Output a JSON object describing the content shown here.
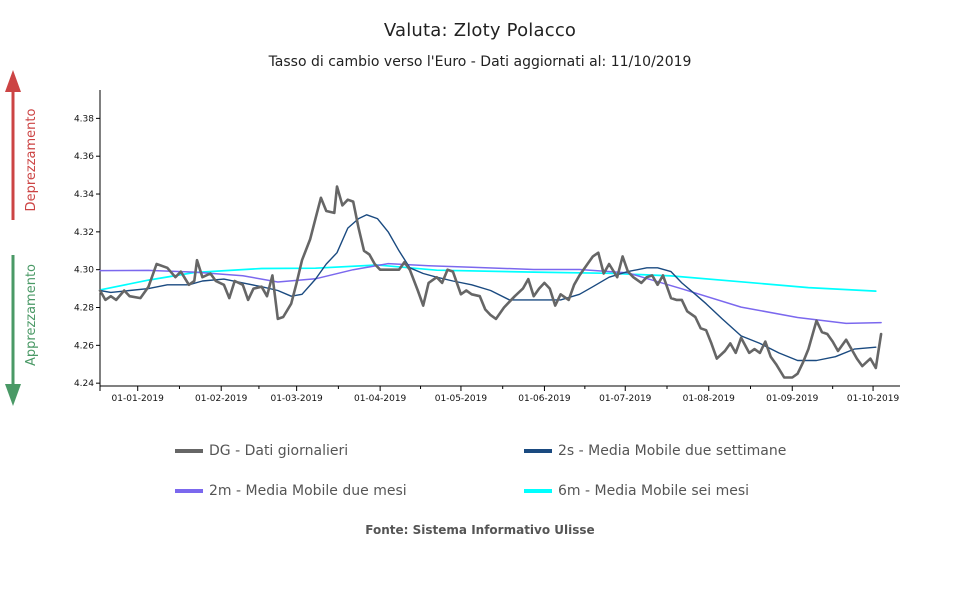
{
  "title": "Valuta: Zloty Polacco",
  "subtitle": "Tasso di cambio verso l'Euro - Dati aggiornati al: 11/10/2019",
  "side_labels": {
    "top": "Deprezzamento",
    "bottom": "Apprezzamento"
  },
  "source": "Fonte: Sistema Informativo Ulisse",
  "colors": {
    "dg": "#666666",
    "ma2s": "#1a4a80",
    "ma2m": "#7b68ee",
    "ma6m": "#00ffff",
    "arrow_up": "#cc4444",
    "arrow_down": "#4a9966"
  },
  "chart_data": {
    "type": "line",
    "title": "Valuta: Zloty Polacco",
    "subtitle": "Tasso di cambio verso l'Euro - Dati aggiornati al: 11/10/2019",
    "xlabel": "",
    "ylabel": "",
    "x_ticks": [
      "01-01-2019",
      "01-02-2019",
      "01-03-2019",
      "01-04-2019",
      "01-05-2019",
      "01-06-2019",
      "01-07-2019",
      "01-08-2019",
      "01-09-2019",
      "01-10-2019"
    ],
    "y_ticks": [
      "4.24",
      "4.26",
      "4.28",
      "4.30",
      "4.32",
      "4.34",
      "4.36",
      "4.38"
    ],
    "ylim": [
      4.2385,
      4.395
    ],
    "xlim": [
      "2018-12-18",
      "2019-10-11"
    ],
    "grid": false,
    "legend_position": "bottom",
    "series": [
      {
        "name": "DG - Dati giornalieri",
        "key": "dg",
        "points": [
          [
            "2018-12-18",
            4.289
          ],
          [
            "2018-12-20",
            4.284
          ],
          [
            "2018-12-22",
            4.286
          ],
          [
            "2018-12-24",
            4.284
          ],
          [
            "2018-12-27",
            4.289
          ],
          [
            "2018-12-29",
            4.286
          ],
          [
            "2019-01-02",
            4.285
          ],
          [
            "2019-01-05",
            4.291
          ],
          [
            "2019-01-08",
            4.303
          ],
          [
            "2019-01-12",
            4.301
          ],
          [
            "2019-01-15",
            4.296
          ],
          [
            "2019-01-17",
            4.299
          ],
          [
            "2019-01-20",
            4.292
          ],
          [
            "2019-01-22",
            4.294
          ],
          [
            "2019-01-23",
            4.305
          ],
          [
            "2019-01-25",
            4.296
          ],
          [
            "2019-01-28",
            4.298
          ],
          [
            "2019-01-30",
            4.294
          ],
          [
            "2019-02-02",
            4.292
          ],
          [
            "2019-02-04",
            4.285
          ],
          [
            "2019-02-06",
            4.294
          ],
          [
            "2019-02-09",
            4.292
          ],
          [
            "2019-02-11",
            4.284
          ],
          [
            "2019-02-13",
            4.29
          ],
          [
            "2019-02-16",
            4.291
          ],
          [
            "2019-02-18",
            4.286
          ],
          [
            "2019-02-20",
            4.297
          ],
          [
            "2019-02-22",
            4.274
          ],
          [
            "2019-02-24",
            4.275
          ],
          [
            "2019-02-27",
            4.282
          ],
          [
            "2019-03-01",
            4.293
          ],
          [
            "2019-03-03",
            4.305
          ],
          [
            "2019-03-06",
            4.316
          ],
          [
            "2019-03-08",
            4.327
          ],
          [
            "2019-03-10",
            4.338
          ],
          [
            "2019-03-12",
            4.331
          ],
          [
            "2019-03-15",
            4.33
          ],
          [
            "2019-03-16",
            4.344
          ],
          [
            "2019-03-18",
            4.334
          ],
          [
            "2019-03-20",
            4.337
          ],
          [
            "2019-03-22",
            4.336
          ],
          [
            "2019-03-24",
            4.322
          ],
          [
            "2019-03-26",
            4.31
          ],
          [
            "2019-03-28",
            4.308
          ],
          [
            "2019-03-30",
            4.303
          ],
          [
            "2019-04-01",
            4.3
          ],
          [
            "2019-04-04",
            4.3
          ],
          [
            "2019-04-06",
            4.3
          ],
          [
            "2019-04-08",
            4.3
          ],
          [
            "2019-04-10",
            4.304
          ],
          [
            "2019-04-12",
            4.3
          ],
          [
            "2019-04-15",
            4.289
          ],
          [
            "2019-04-17",
            4.281
          ],
          [
            "2019-04-19",
            4.293
          ],
          [
            "2019-04-22",
            4.296
          ],
          [
            "2019-04-24",
            4.293
          ],
          [
            "2019-04-26",
            4.3
          ],
          [
            "2019-04-28",
            4.299
          ],
          [
            "2019-05-01",
            4.287
          ],
          [
            "2019-05-03",
            4.289
          ],
          [
            "2019-05-05",
            4.287
          ],
          [
            "2019-05-08",
            4.286
          ],
          [
            "2019-05-10",
            4.279
          ],
          [
            "2019-05-12",
            4.276
          ],
          [
            "2019-05-14",
            4.274
          ],
          [
            "2019-05-17",
            4.28
          ],
          [
            "2019-05-19",
            4.283
          ],
          [
            "2019-05-21",
            4.286
          ],
          [
            "2019-05-24",
            4.29
          ],
          [
            "2019-05-26",
            4.295
          ],
          [
            "2019-05-28",
            4.286
          ],
          [
            "2019-05-30",
            4.29
          ],
          [
            "2019-06-01",
            4.293
          ],
          [
            "2019-06-03",
            4.29
          ],
          [
            "2019-06-05",
            4.281
          ],
          [
            "2019-06-07",
            4.287
          ],
          [
            "2019-06-10",
            4.284
          ],
          [
            "2019-06-12",
            4.292
          ],
          [
            "2019-06-14",
            4.297
          ],
          [
            "2019-06-17",
            4.303
          ],
          [
            "2019-06-19",
            4.307
          ],
          [
            "2019-06-21",
            4.309
          ],
          [
            "2019-06-23",
            4.298
          ],
          [
            "2019-06-25",
            4.303
          ],
          [
            "2019-06-28",
            4.296
          ],
          [
            "2019-06-30",
            4.307
          ],
          [
            "2019-07-02",
            4.299
          ],
          [
            "2019-07-04",
            4.296
          ],
          [
            "2019-07-07",
            4.293
          ],
          [
            "2019-07-09",
            4.296
          ],
          [
            "2019-07-11",
            4.297
          ],
          [
            "2019-07-13",
            4.292
          ],
          [
            "2019-07-15",
            4.297
          ],
          [
            "2019-07-18",
            4.285
          ],
          [
            "2019-07-20",
            4.284
          ],
          [
            "2019-07-22",
            4.284
          ],
          [
            "2019-07-24",
            4.278
          ],
          [
            "2019-07-27",
            4.275
          ],
          [
            "2019-07-29",
            4.269
          ],
          [
            "2019-07-31",
            4.268
          ],
          [
            "2019-08-02",
            4.261
          ],
          [
            "2019-08-04",
            4.253
          ],
          [
            "2019-08-07",
            4.257
          ],
          [
            "2019-08-09",
            4.261
          ],
          [
            "2019-08-11",
            4.256
          ],
          [
            "2019-08-13",
            4.264
          ],
          [
            "2019-08-16",
            4.256
          ],
          [
            "2019-08-18",
            4.258
          ],
          [
            "2019-08-20",
            4.256
          ],
          [
            "2019-08-22",
            4.262
          ],
          [
            "2019-08-24",
            4.254
          ],
          [
            "2019-08-26",
            4.25
          ],
          [
            "2019-08-29",
            4.243
          ],
          [
            "2019-09-01",
            4.243
          ],
          [
            "2019-09-03",
            4.245
          ],
          [
            "2019-09-05",
            4.251
          ],
          [
            "2019-09-07",
            4.258
          ],
          [
            "2019-09-10",
            4.273
          ],
          [
            "2019-09-12",
            4.267
          ],
          [
            "2019-09-14",
            4.266
          ],
          [
            "2019-09-16",
            4.262
          ],
          [
            "2019-09-18",
            4.257
          ],
          [
            "2019-09-21",
            4.263
          ],
          [
            "2019-09-23",
            4.258
          ],
          [
            "2019-09-25",
            4.253
          ],
          [
            "2019-09-27",
            4.249
          ],
          [
            "2019-09-30",
            4.253
          ],
          [
            "2019-10-02",
            4.248
          ],
          [
            "2019-10-04",
            4.266
          ]
        ]
      },
      {
        "name": "2s - Media Mobile due settimane",
        "key": "ma2s",
        "points": [
          [
            "2018-12-18",
            4.289
          ],
          [
            "2018-12-22",
            4.288
          ],
          [
            "2018-12-29",
            4.289
          ],
          [
            "2019-01-05",
            4.29
          ],
          [
            "2019-01-12",
            4.292
          ],
          [
            "2019-01-20",
            4.292
          ],
          [
            "2019-01-25",
            4.294
          ],
          [
            "2019-02-02",
            4.295
          ],
          [
            "2019-02-09",
            4.293
          ],
          [
            "2019-02-16",
            4.291
          ],
          [
            "2019-02-22",
            4.289
          ],
          [
            "2019-02-27",
            4.286
          ],
          [
            "2019-03-03",
            4.287
          ],
          [
            "2019-03-08",
            4.295
          ],
          [
            "2019-03-12",
            4.303
          ],
          [
            "2019-03-16",
            4.309
          ],
          [
            "2019-03-20",
            4.322
          ],
          [
            "2019-03-24",
            4.327
          ],
          [
            "2019-03-27",
            4.329
          ],
          [
            "2019-03-31",
            4.327
          ],
          [
            "2019-04-04",
            4.32
          ],
          [
            "2019-04-08",
            4.31
          ],
          [
            "2019-04-12",
            4.301
          ],
          [
            "2019-04-17",
            4.298
          ],
          [
            "2019-04-22",
            4.296
          ],
          [
            "2019-04-28",
            4.294
          ],
          [
            "2019-05-05",
            4.292
          ],
          [
            "2019-05-12",
            4.289
          ],
          [
            "2019-05-19",
            4.284
          ],
          [
            "2019-05-28",
            4.284
          ],
          [
            "2019-06-07",
            4.284
          ],
          [
            "2019-06-14",
            4.287
          ],
          [
            "2019-06-19",
            4.291
          ],
          [
            "2019-06-25",
            4.296
          ],
          [
            "2019-07-02",
            4.299
          ],
          [
            "2019-07-09",
            4.301
          ],
          [
            "2019-07-13",
            4.301
          ],
          [
            "2019-07-18",
            4.299
          ],
          [
            "2019-07-22",
            4.293
          ],
          [
            "2019-07-27",
            4.287
          ],
          [
            "2019-07-31",
            4.282
          ],
          [
            "2019-08-06",
            4.274
          ],
          [
            "2019-08-13",
            4.265
          ],
          [
            "2019-08-20",
            4.261
          ],
          [
            "2019-08-27",
            4.256
          ],
          [
            "2019-09-03",
            4.252
          ],
          [
            "2019-09-10",
            4.252
          ],
          [
            "2019-09-17",
            4.254
          ],
          [
            "2019-09-24",
            4.258
          ],
          [
            "2019-10-02",
            4.259
          ]
        ]
      },
      {
        "name": "2m - Media Mobile due mesi",
        "key": "ma2m",
        "points": [
          [
            "2018-12-18",
            4.2995
          ],
          [
            "2019-01-05",
            4.2996
          ],
          [
            "2019-01-22",
            4.2987
          ],
          [
            "2019-02-09",
            4.2968
          ],
          [
            "2019-02-22",
            4.2935
          ],
          [
            "2019-03-08",
            4.2952
          ],
          [
            "2019-03-22",
            4.3
          ],
          [
            "2019-04-04",
            4.3032
          ],
          [
            "2019-04-19",
            4.3021
          ],
          [
            "2019-05-05",
            4.3013
          ],
          [
            "2019-05-28",
            4.3001
          ],
          [
            "2019-06-14",
            4.3001
          ],
          [
            "2019-07-02",
            4.2983
          ],
          [
            "2019-07-22",
            4.2899
          ],
          [
            "2019-08-13",
            4.2802
          ],
          [
            "2019-09-03",
            4.2747
          ],
          [
            "2019-09-21",
            4.2716
          ],
          [
            "2019-10-04",
            4.272
          ]
        ]
      },
      {
        "name": "6m - Media Mobile sei mesi",
        "key": "ma6m",
        "points": [
          [
            "2018-12-18",
            4.2893
          ],
          [
            "2019-01-05",
            4.2945
          ],
          [
            "2019-01-22",
            4.2985
          ],
          [
            "2019-02-16",
            4.3006
          ],
          [
            "2019-03-08",
            4.3008
          ],
          [
            "2019-03-31",
            4.3025
          ],
          [
            "2019-04-22",
            4.2997
          ],
          [
            "2019-05-28",
            4.2987
          ],
          [
            "2019-06-25",
            4.2981
          ],
          [
            "2019-07-18",
            4.2967
          ],
          [
            "2019-08-13",
            4.2936
          ],
          [
            "2019-09-07",
            4.2905
          ],
          [
            "2019-10-02",
            4.2887
          ]
        ]
      }
    ]
  }
}
